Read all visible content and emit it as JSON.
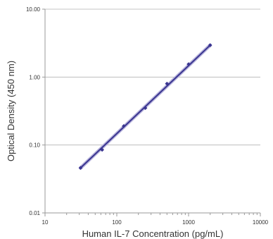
{
  "chart_data": {
    "type": "scatter",
    "title": "",
    "xlabel": "Human IL-7 Concentration (pg/mL)",
    "ylabel": "Optical Density (450 nm)",
    "x_scale": "log",
    "y_scale": "log",
    "xlim": [
      10,
      10000
    ],
    "ylim": [
      0.01,
      10
    ],
    "x_ticks": [
      "10",
      "100",
      "1000",
      "10000"
    ],
    "y_ticks": [
      "0.01",
      "0.10",
      "1.00",
      "10.00"
    ],
    "grid": "horizontal",
    "series": [
      {
        "x": [
          31.25,
          62.5,
          125,
          250,
          500,
          1000,
          2000
        ],
        "y": [
          0.046,
          0.085,
          0.19,
          0.35,
          0.8,
          1.55,
          2.95
        ],
        "fit": "line",
        "color": "#3a3590"
      }
    ],
    "colors": {
      "line": "#3a3590",
      "marker": "#3a3590",
      "line_glow": "#b7b3dc"
    }
  }
}
